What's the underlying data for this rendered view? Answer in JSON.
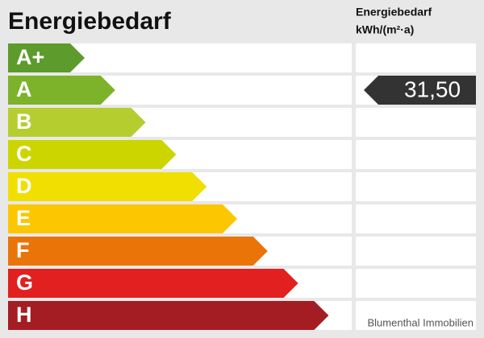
{
  "title": "Energiebedarf",
  "value_column": {
    "title": "Energiebedarf",
    "unit": "kWh/(m²·a)"
  },
  "classes": [
    {
      "label": "A+",
      "color": "#5d9b2c"
    },
    {
      "label": "A",
      "color": "#7db22b"
    },
    {
      "label": "B",
      "color": "#b6cd2f"
    },
    {
      "label": "C",
      "color": "#cdd500"
    },
    {
      "label": "D",
      "color": "#f0df00"
    },
    {
      "label": "E",
      "color": "#fcc700"
    },
    {
      "label": "F",
      "color": "#ea7408"
    },
    {
      "label": "G",
      "color": "#e1201f"
    },
    {
      "label": "H",
      "color": "#a41d23"
    }
  ],
  "value": "31,50",
  "footer": "Blumenthal Immobilien"
}
